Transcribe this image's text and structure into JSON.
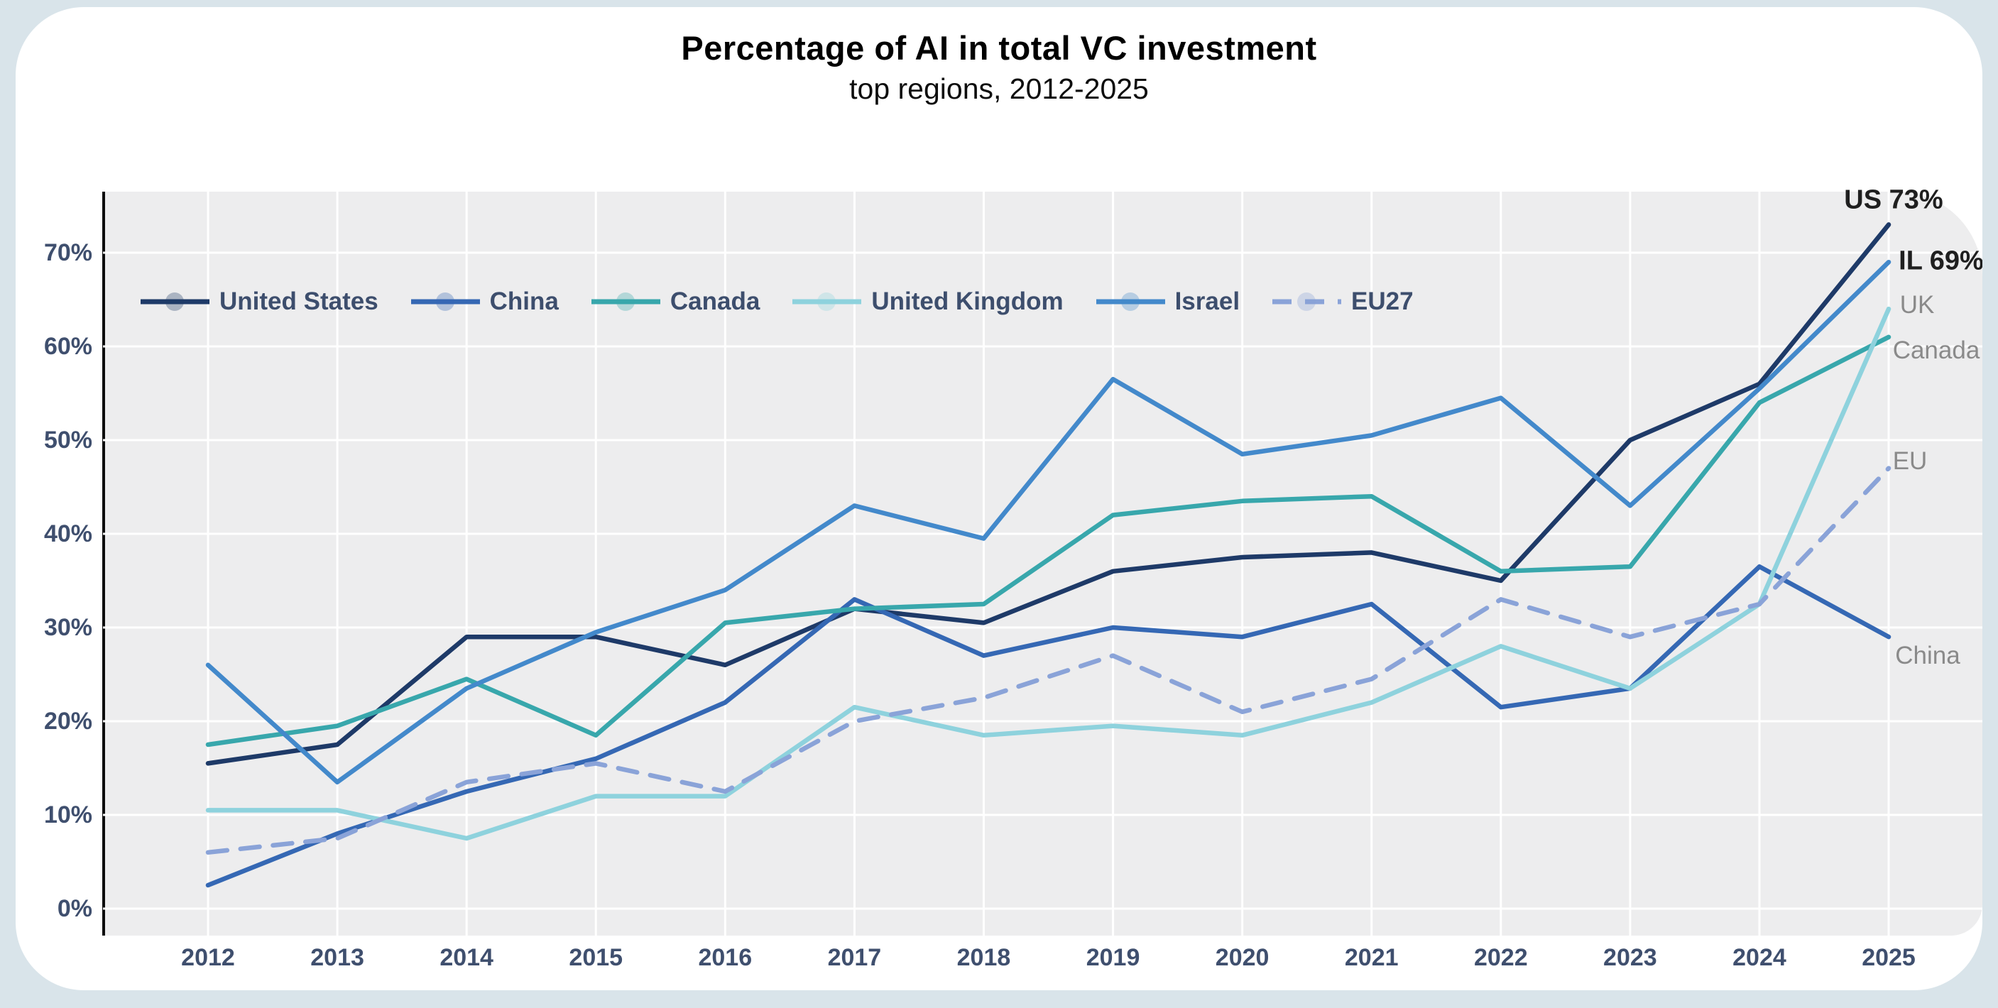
{
  "chart_data": {
    "type": "line",
    "title": "Percentage of AI in total VC investment",
    "subtitle": "top regions, 2012-2025",
    "x": [
      2012,
      2013,
      2014,
      2015,
      2016,
      2017,
      2018,
      2019,
      2020,
      2021,
      2022,
      2023,
      2024,
      2025
    ],
    "x_tick_labels": [
      "2012",
      "2013",
      "2014",
      "2015",
      "2016",
      "2017",
      "2018",
      "2019",
      "2020",
      "2021",
      "2022",
      "2023",
      "2024",
      "2025"
    ],
    "y_tick_labels": [
      "0%",
      "10%",
      "20%",
      "30%",
      "40%",
      "50%",
      "60%",
      "70%"
    ],
    "y_tick_values": [
      0,
      10,
      20,
      30,
      40,
      50,
      60,
      70
    ],
    "ylim": [
      0,
      75
    ],
    "grid": true,
    "legend_position": "top-inside",
    "plot_bg_color": "#ededee",
    "gridline_color": "#ffffff",
    "series": [
      {
        "name": "United States",
        "color": "#1e3a68",
        "dash": false,
        "values": [
          15.5,
          17.5,
          29,
          29,
          26,
          32,
          30.5,
          36,
          37.5,
          38,
          35,
          50,
          56,
          73
        ]
      },
      {
        "name": "China",
        "color": "#3568b4",
        "dash": false,
        "values": [
          2.5,
          8,
          12.5,
          16,
          22,
          33,
          27,
          30,
          29,
          32.5,
          21.5,
          23.5,
          36.5,
          29
        ]
      },
      {
        "name": "Canada",
        "color": "#38a7ac",
        "dash": false,
        "values": [
          17.5,
          19.5,
          24.5,
          18.5,
          30.5,
          32,
          32.5,
          42,
          43.5,
          44,
          36,
          36.5,
          54,
          61
        ]
      },
      {
        "name": "United Kingdom",
        "color": "#8ed2dd",
        "dash": false,
        "values": [
          10.5,
          10.5,
          7.5,
          12,
          12,
          21.5,
          18.5,
          19.5,
          18.5,
          22,
          28,
          23.5,
          32.5,
          64
        ]
      },
      {
        "name": "Israel",
        "color": "#4389cb",
        "dash": false,
        "values": [
          26,
          13.5,
          23.5,
          29.5,
          34,
          43,
          39.5,
          56.5,
          48.5,
          50.5,
          54.5,
          43,
          55.5,
          69
        ]
      },
      {
        "name": "EU27",
        "color": "#8aa3d8",
        "dash": true,
        "values": [
          6,
          7.5,
          13.5,
          15.5,
          12.5,
          20,
          22.5,
          27,
          21,
          24.5,
          33,
          29,
          32.5,
          47
        ]
      }
    ],
    "annotations": [
      {
        "text": "US 73%",
        "color": "#1f1f1f",
        "bold": true
      },
      {
        "text": "IL 69%",
        "color": "#1f1f1f",
        "bold": true
      },
      {
        "text": "UK",
        "color": "#8a8a8a",
        "bold": false
      },
      {
        "text": "Canada",
        "color": "#8a8a8a",
        "bold": false
      },
      {
        "text": "EU",
        "color": "#8a8a8a",
        "bold": false
      },
      {
        "text": "China",
        "color": "#8a8a8a",
        "bold": false
      }
    ]
  }
}
